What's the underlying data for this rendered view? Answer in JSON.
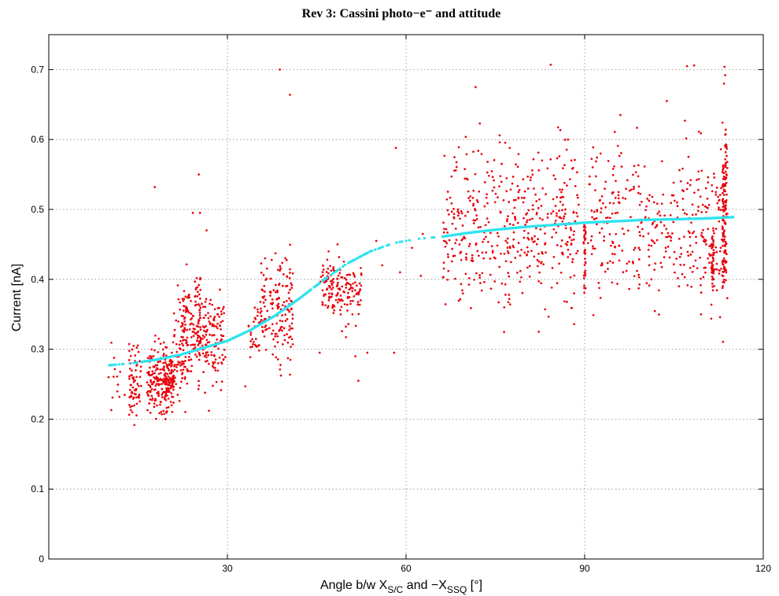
{
  "chart_data": {
    "type": "scatter",
    "title": "Rev 3: Cassini photo−e⁻ and attitude",
    "xlabel": {
      "parts": [
        "Angle b/w X",
        "S/C",
        " and −X",
        "SSQ",
        " [°]"
      ]
    },
    "ylabel": "Current [nA]",
    "xlim": [
      0,
      120
    ],
    "ylim": [
      0,
      0.75
    ],
    "xticks": [
      30,
      60,
      90,
      120
    ],
    "xtick_labels": [
      "30",
      "60",
      "90",
      "120"
    ],
    "yticks": [
      0,
      0.1,
      0.2,
      0.3,
      0.4,
      0.5,
      0.6,
      0.7
    ],
    "ytick_labels": [
      "0",
      "0.1",
      "0.2",
      "0.3",
      "0.4",
      "0.5",
      "0.6",
      "0.7"
    ],
    "grid": true,
    "series": [
      {
        "kind": "scatter-clusters",
        "color": "#e8000b",
        "clusters": [
          {
            "x_range": [
              10,
              13
            ],
            "y_center": 0.26,
            "y_spread": 0.03,
            "count": 12
          },
          {
            "x_range": [
              13.5,
              15.5
            ],
            "y_center": 0.255,
            "y_spread": 0.025,
            "count": 70
          },
          {
            "x_range": [
              16.5,
              19
            ],
            "y_center": 0.255,
            "y_spread": 0.025,
            "count": 110
          },
          {
            "x_range": [
              19,
              21
            ],
            "y_center": 0.255,
            "y_spread": 0.022,
            "count": 140
          },
          {
            "x_range": [
              21,
              23
            ],
            "y_center": 0.3,
            "y_spread": 0.04,
            "count": 70
          },
          {
            "x_range": [
              22.5,
              25.5
            ],
            "y_center": 0.33,
            "y_spread": 0.035,
            "count": 120
          },
          {
            "x_range": [
              25,
              30
            ],
            "y_center": 0.32,
            "y_spread": 0.035,
            "count": 140
          },
          {
            "x_range": [
              33.5,
              35.5
            ],
            "y_center": 0.325,
            "y_spread": 0.02,
            "count": 30
          },
          {
            "x_range": [
              35.5,
              37.5
            ],
            "y_center": 0.365,
            "y_spread": 0.03,
            "count": 50
          },
          {
            "x_range": [
              37.5,
              41
            ],
            "y_center": 0.355,
            "y_spread": 0.04,
            "count": 110
          },
          {
            "x_range": [
              45.5,
              49
            ],
            "y_center": 0.395,
            "y_spread": 0.02,
            "count": 90
          },
          {
            "x_range": [
              49,
              52.5
            ],
            "y_center": 0.38,
            "y_spread": 0.025,
            "count": 70
          },
          {
            "x_range": [
              66,
              80
            ],
            "y_center": 0.48,
            "y_spread": 0.055,
            "count": 260
          },
          {
            "x_range": [
              80,
              89
            ],
            "y_center": 0.48,
            "y_spread": 0.055,
            "count": 180
          },
          {
            "x_range": [
              90.5,
              110
            ],
            "y_center": 0.48,
            "y_spread": 0.055,
            "count": 300
          },
          {
            "x_range": [
              110,
              114
            ],
            "y_center": 0.47,
            "y_spread": 0.06,
            "count": 90
          }
        ],
        "vertical_streaks": [
          {
            "x": 90,
            "y_range": [
              0.38,
              0.48
            ],
            "count": 40
          },
          {
            "x": 111.5,
            "y_range": [
              0.38,
              0.47
            ],
            "count": 40
          },
          {
            "x": 113.3,
            "y_range": [
              0.38,
              0.57
            ],
            "count": 70
          },
          {
            "x": 113.7,
            "y_range": [
              0.39,
              0.62
            ],
            "count": 60
          }
        ],
        "outliers": [
          [
            17.8,
            0.532
          ],
          [
            25.2,
            0.55
          ],
          [
            24.2,
            0.495
          ],
          [
            25.4,
            0.495
          ],
          [
            26.5,
            0.47
          ],
          [
            38.8,
            0.7
          ],
          [
            40.5,
            0.664
          ],
          [
            13.8,
            0.213
          ],
          [
            10.5,
            0.213
          ],
          [
            33,
            0.247
          ],
          [
            45.5,
            0.295
          ],
          [
            51.5,
            0.29
          ],
          [
            52,
            0.255
          ],
          [
            53.5,
            0.295
          ],
          [
            58,
            0.295
          ],
          [
            58.3,
            0.588
          ],
          [
            61,
            0.445
          ],
          [
            62.5,
            0.405
          ],
          [
            59,
            0.41
          ],
          [
            62.8,
            0.465
          ],
          [
            47,
            0.44
          ],
          [
            48.5,
            0.45
          ],
          [
            55,
            0.455
          ],
          [
            56,
            0.42
          ],
          [
            71.7,
            0.675
          ],
          [
            76.5,
            0.36
          ],
          [
            82.3,
            0.325
          ],
          [
            84.3,
            0.707
          ],
          [
            87.2,
            0.6
          ],
          [
            96,
            0.635
          ],
          [
            103.8,
            0.655
          ],
          [
            107.2,
            0.705
          ],
          [
            108.4,
            0.706
          ],
          [
            113.5,
            0.704
          ],
          [
            113.6,
            0.692
          ],
          [
            113.4,
            0.68
          ],
          [
            26.9,
            0.212
          ],
          [
            19.6,
            0.2
          ]
        ]
      },
      {
        "kind": "fit-curve",
        "color": "#2fe3ee",
        "x_start": 10,
        "x_end": 115,
        "gaps": [
          [
            56,
            66
          ]
        ],
        "points": [
          [
            10,
            0.277
          ],
          [
            14,
            0.28
          ],
          [
            18,
            0.285
          ],
          [
            22,
            0.292
          ],
          [
            26,
            0.302
          ],
          [
            30,
            0.312
          ],
          [
            34,
            0.328
          ],
          [
            38,
            0.348
          ],
          [
            42,
            0.372
          ],
          [
            46,
            0.398
          ],
          [
            50,
            0.422
          ],
          [
            54,
            0.44
          ],
          [
            58,
            0.452
          ],
          [
            62,
            0.458
          ],
          [
            66,
            0.461
          ],
          [
            70,
            0.466
          ],
          [
            75,
            0.471
          ],
          [
            80,
            0.475
          ],
          [
            85,
            0.478
          ],
          [
            90,
            0.481
          ],
          [
            95,
            0.483
          ],
          [
            100,
            0.485
          ],
          [
            105,
            0.486
          ],
          [
            110,
            0.487
          ],
          [
            115,
            0.489
          ]
        ]
      }
    ]
  }
}
